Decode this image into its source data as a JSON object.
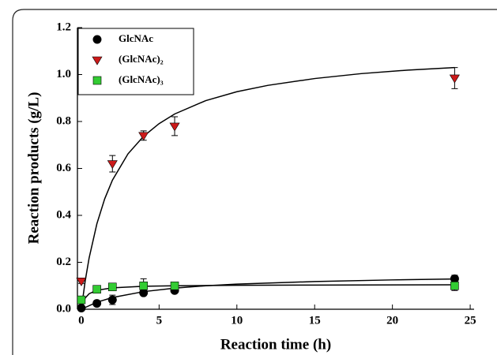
{
  "chart_data": {
    "type": "scatter",
    "x_label": "Reaction time (h)",
    "y_label": "Reaction products (g/L)",
    "xlim": [
      -0.25,
      25.25
    ],
    "xticks": [
      0,
      5,
      10,
      15,
      20,
      25
    ],
    "ylim": [
      0,
      1.2
    ],
    "yticks": [
      {
        "value": 0,
        "label": "0.0"
      },
      {
        "value": 0.2,
        "label": "0.2"
      },
      {
        "value": 0.4,
        "label": "0.4"
      },
      {
        "value": 0.6,
        "label": "0.6"
      },
      {
        "value": 0.8,
        "label": "0.8"
      },
      {
        "value": 1.0,
        "label": "1.0"
      },
      {
        "value": 1.2,
        "label": "1.2"
      }
    ],
    "legend": "upper left",
    "series": [
      {
        "name": "GlcNAc",
        "color": "#000000",
        "marker": "circle",
        "x": [
          0,
          1,
          2,
          4,
          6,
          24
        ],
        "values": [
          0.005,
          0.025,
          0.04,
          0.07,
          0.08,
          0.13
        ],
        "errors": [
          0.005,
          0.005,
          0.02,
          0.01,
          0.01,
          0.015
        ],
        "fit_x": [
          0,
          1,
          2,
          4,
          6,
          8,
          10,
          15,
          20,
          24
        ],
        "fit_values": [
          0,
          0.03,
          0.05,
          0.075,
          0.09,
          0.1,
          0.107,
          0.118,
          0.125,
          0.129
        ]
      },
      {
        "name": "(GlcNAc)₂",
        "color": "#cc1a1a",
        "marker": "triangle-down",
        "x": [
          0,
          2,
          4,
          6,
          24
        ],
        "values": [
          0.12,
          0.62,
          0.74,
          0.78,
          0.985
        ],
        "errors": [
          0.01,
          0.035,
          0.02,
          0.04,
          0.045
        ],
        "fit_x": [
          0,
          0.25,
          0.5,
          1,
          1.5,
          2,
          3,
          4,
          5,
          6,
          8,
          10,
          12,
          15,
          18,
          21,
          24
        ],
        "fit_values": [
          0,
          0.121,
          0.218,
          0.364,
          0.47,
          0.55,
          0.662,
          0.737,
          0.791,
          0.832,
          0.889,
          0.927,
          0.954,
          0.983,
          1.004,
          1.019,
          1.03
        ]
      },
      {
        "name": "(GlcNAc)₃",
        "color": "#33cc33",
        "marker": "square",
        "x": [
          0,
          1,
          2,
          4,
          6,
          24
        ],
        "values": [
          0.04,
          0.085,
          0.095,
          0.1,
          0.1,
          0.1
        ],
        "errors": [
          0.005,
          0.01,
          0.01,
          0.03,
          0.01,
          0.02
        ],
        "fit_x": [
          0,
          0.25,
          0.5,
          1,
          2,
          4,
          6,
          10,
          15,
          24
        ],
        "fit_values": [
          0,
          0.048,
          0.066,
          0.081,
          0.091,
          0.098,
          0.1,
          0.102,
          0.103,
          0.104
        ]
      }
    ]
  }
}
